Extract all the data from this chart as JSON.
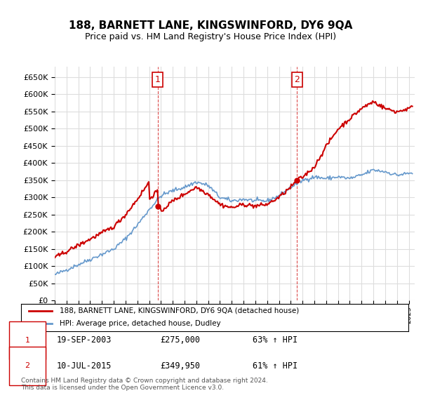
{
  "title": "188, BARNETT LANE, KINGSWINFORD, DY6 9QA",
  "subtitle": "Price paid vs. HM Land Registry's House Price Index (HPI)",
  "legend_line1": "188, BARNETT LANE, KINGSWINFORD, DY6 9QA (detached house)",
  "legend_line2": "HPI: Average price, detached house, Dudley",
  "transaction1_date": "19-SEP-2003",
  "transaction1_price": "£275,000",
  "transaction1_hpi": "63% ↑ HPI",
  "transaction1_x": 2003.72,
  "transaction1_y": 275000,
  "transaction2_date": "10-JUL-2015",
  "transaction2_price": "£349,950",
  "transaction2_hpi": "61% ↑ HPI",
  "transaction2_x": 2015.53,
  "transaction2_y": 349950,
  "hpi_color": "#6699cc",
  "price_color": "#cc0000",
  "background_color": "#ffffff",
  "grid_color": "#dddddd",
  "ylim": [
    0,
    680000
  ],
  "xlim_start": 1995,
  "xlim_end": 2025.5,
  "footer": "Contains HM Land Registry data © Crown copyright and database right 2024.\nThis data is licensed under the Open Government Licence v3.0."
}
